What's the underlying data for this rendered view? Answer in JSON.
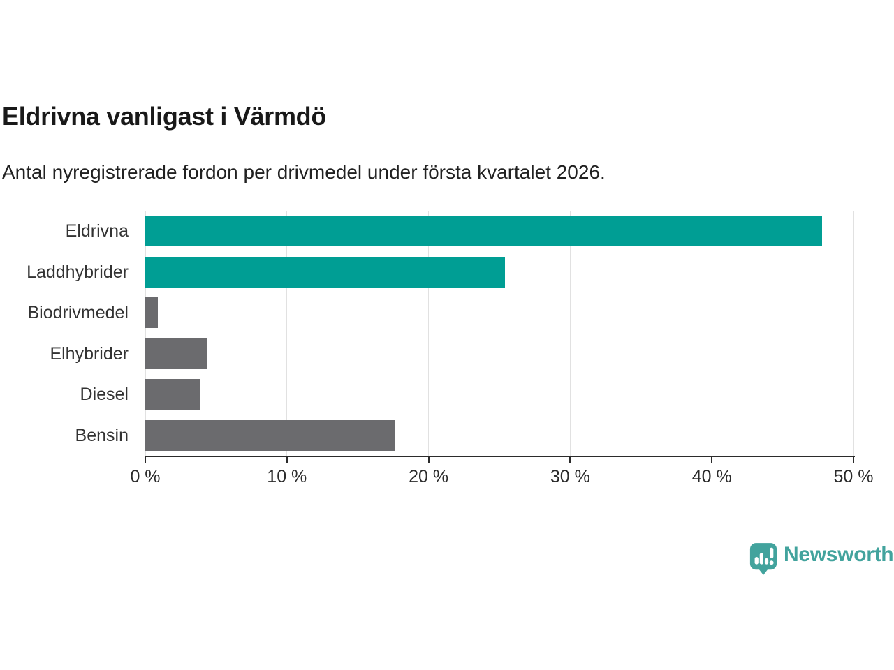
{
  "chart_data": {
    "type": "bar",
    "orientation": "horizontal",
    "title": "Eldrivna vanligast i Värmdö",
    "subtitle": "Antal nyregistrerade fordon per drivmedel under första kvartalet 2026.",
    "categories": [
      "Eldrivna",
      "Laddhybrider",
      "Biodrivmedel",
      "Elhybrider",
      "Diesel",
      "Bensin"
    ],
    "values": [
      47.8,
      25.4,
      0.9,
      4.4,
      3.9,
      17.6
    ],
    "unit": "%",
    "xlabel": "",
    "ylabel": "",
    "xlim": [
      0,
      50
    ],
    "x_tick_values": [
      0,
      10,
      20,
      30,
      40,
      50
    ],
    "x_tick_labels": [
      "0 %",
      "10 %",
      "20 %",
      "30 %",
      "40 %",
      "50 %"
    ],
    "grid": true,
    "legend": false,
    "bar_colors": [
      "#009e94",
      "#009e94",
      "#6b6b6e",
      "#6b6b6e",
      "#6b6b6e",
      "#6b6b6e"
    ],
    "highlight_color": "#009e94",
    "default_color": "#6b6b6e",
    "gridline_color": "#e1e1e1",
    "axis_color": "#2b2b2b"
  },
  "branding": {
    "name": "Newsworthy",
    "logo_icon": "bar-chart-speech-bubble-icon",
    "color": "#42a39d"
  }
}
